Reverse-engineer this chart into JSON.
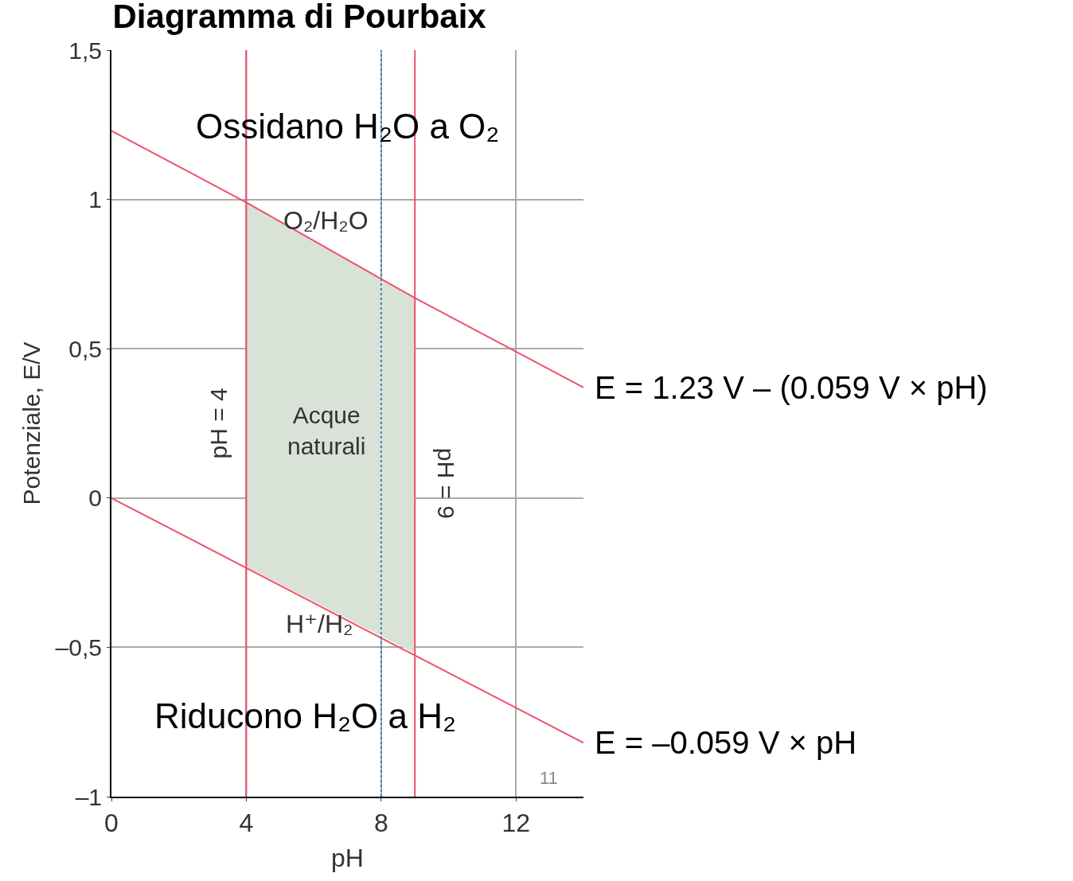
{
  "chart_data": {
    "type": "line",
    "title": "Diagramma di Pourbaix",
    "xlabel": "pH",
    "ylabel": "Potenziale, E/V",
    "xlim": [
      0,
      14
    ],
    "xticks": [
      0,
      4,
      8,
      12
    ],
    "ylim": [
      -1,
      1.5
    ],
    "yticks": [
      {
        "value": 1.5,
        "label": "1,5"
      },
      1,
      {
        "value": 0.5,
        "label": "0,5"
      },
      0,
      {
        "value": -0.5,
        "label": "–0,5"
      },
      {
        "value": -1,
        "label": "–1"
      }
    ],
    "grid": true,
    "marker": "none",
    "line_style": "solid",
    "series": [
      {
        "color": "#f0506a",
        "x": [
          0,
          4,
          9,
          14
        ],
        "values": [
          1.23,
          0.99,
          0.67,
          0.37
        ],
        "lower": [
          null,
          -0.23,
          -0.52,
          null
        ],
        "upper": [
          null,
          0.99,
          0.67,
          null
        ]
      },
      {
        "color": "#f0506a",
        "x": [
          0,
          14
        ],
        "values": [
          0,
          -0.82
        ]
      }
    ],
    "ref_lines": [
      {
        "axis": "x",
        "value": 4,
        "label": "pH = 4",
        "color": "#f0506a",
        "line_style": "solid"
      },
      {
        "axis": "x",
        "value": 9,
        "label": "pH = 9",
        "color": "#f0506a",
        "line_style": "solid"
      },
      {
        "axis": "x",
        "value": 8,
        "color": "#3b7fc4",
        "line_style": "dotted"
      }
    ],
    "annotations": [
      "Ossidano H₂O a O₂",
      "O₂/H₂O",
      "Acque\nnaturali",
      "H⁺/H₂",
      "Riducono H₂O a H₂",
      {
        "text": "E = 1.23 V – (0.059 V × pH)",
        "x": 14,
        "y": 0.37
      },
      {
        "text": "E = –0.059 V × pH",
        "x": 14,
        "y": -0.82
      },
      "11"
    ]
  }
}
